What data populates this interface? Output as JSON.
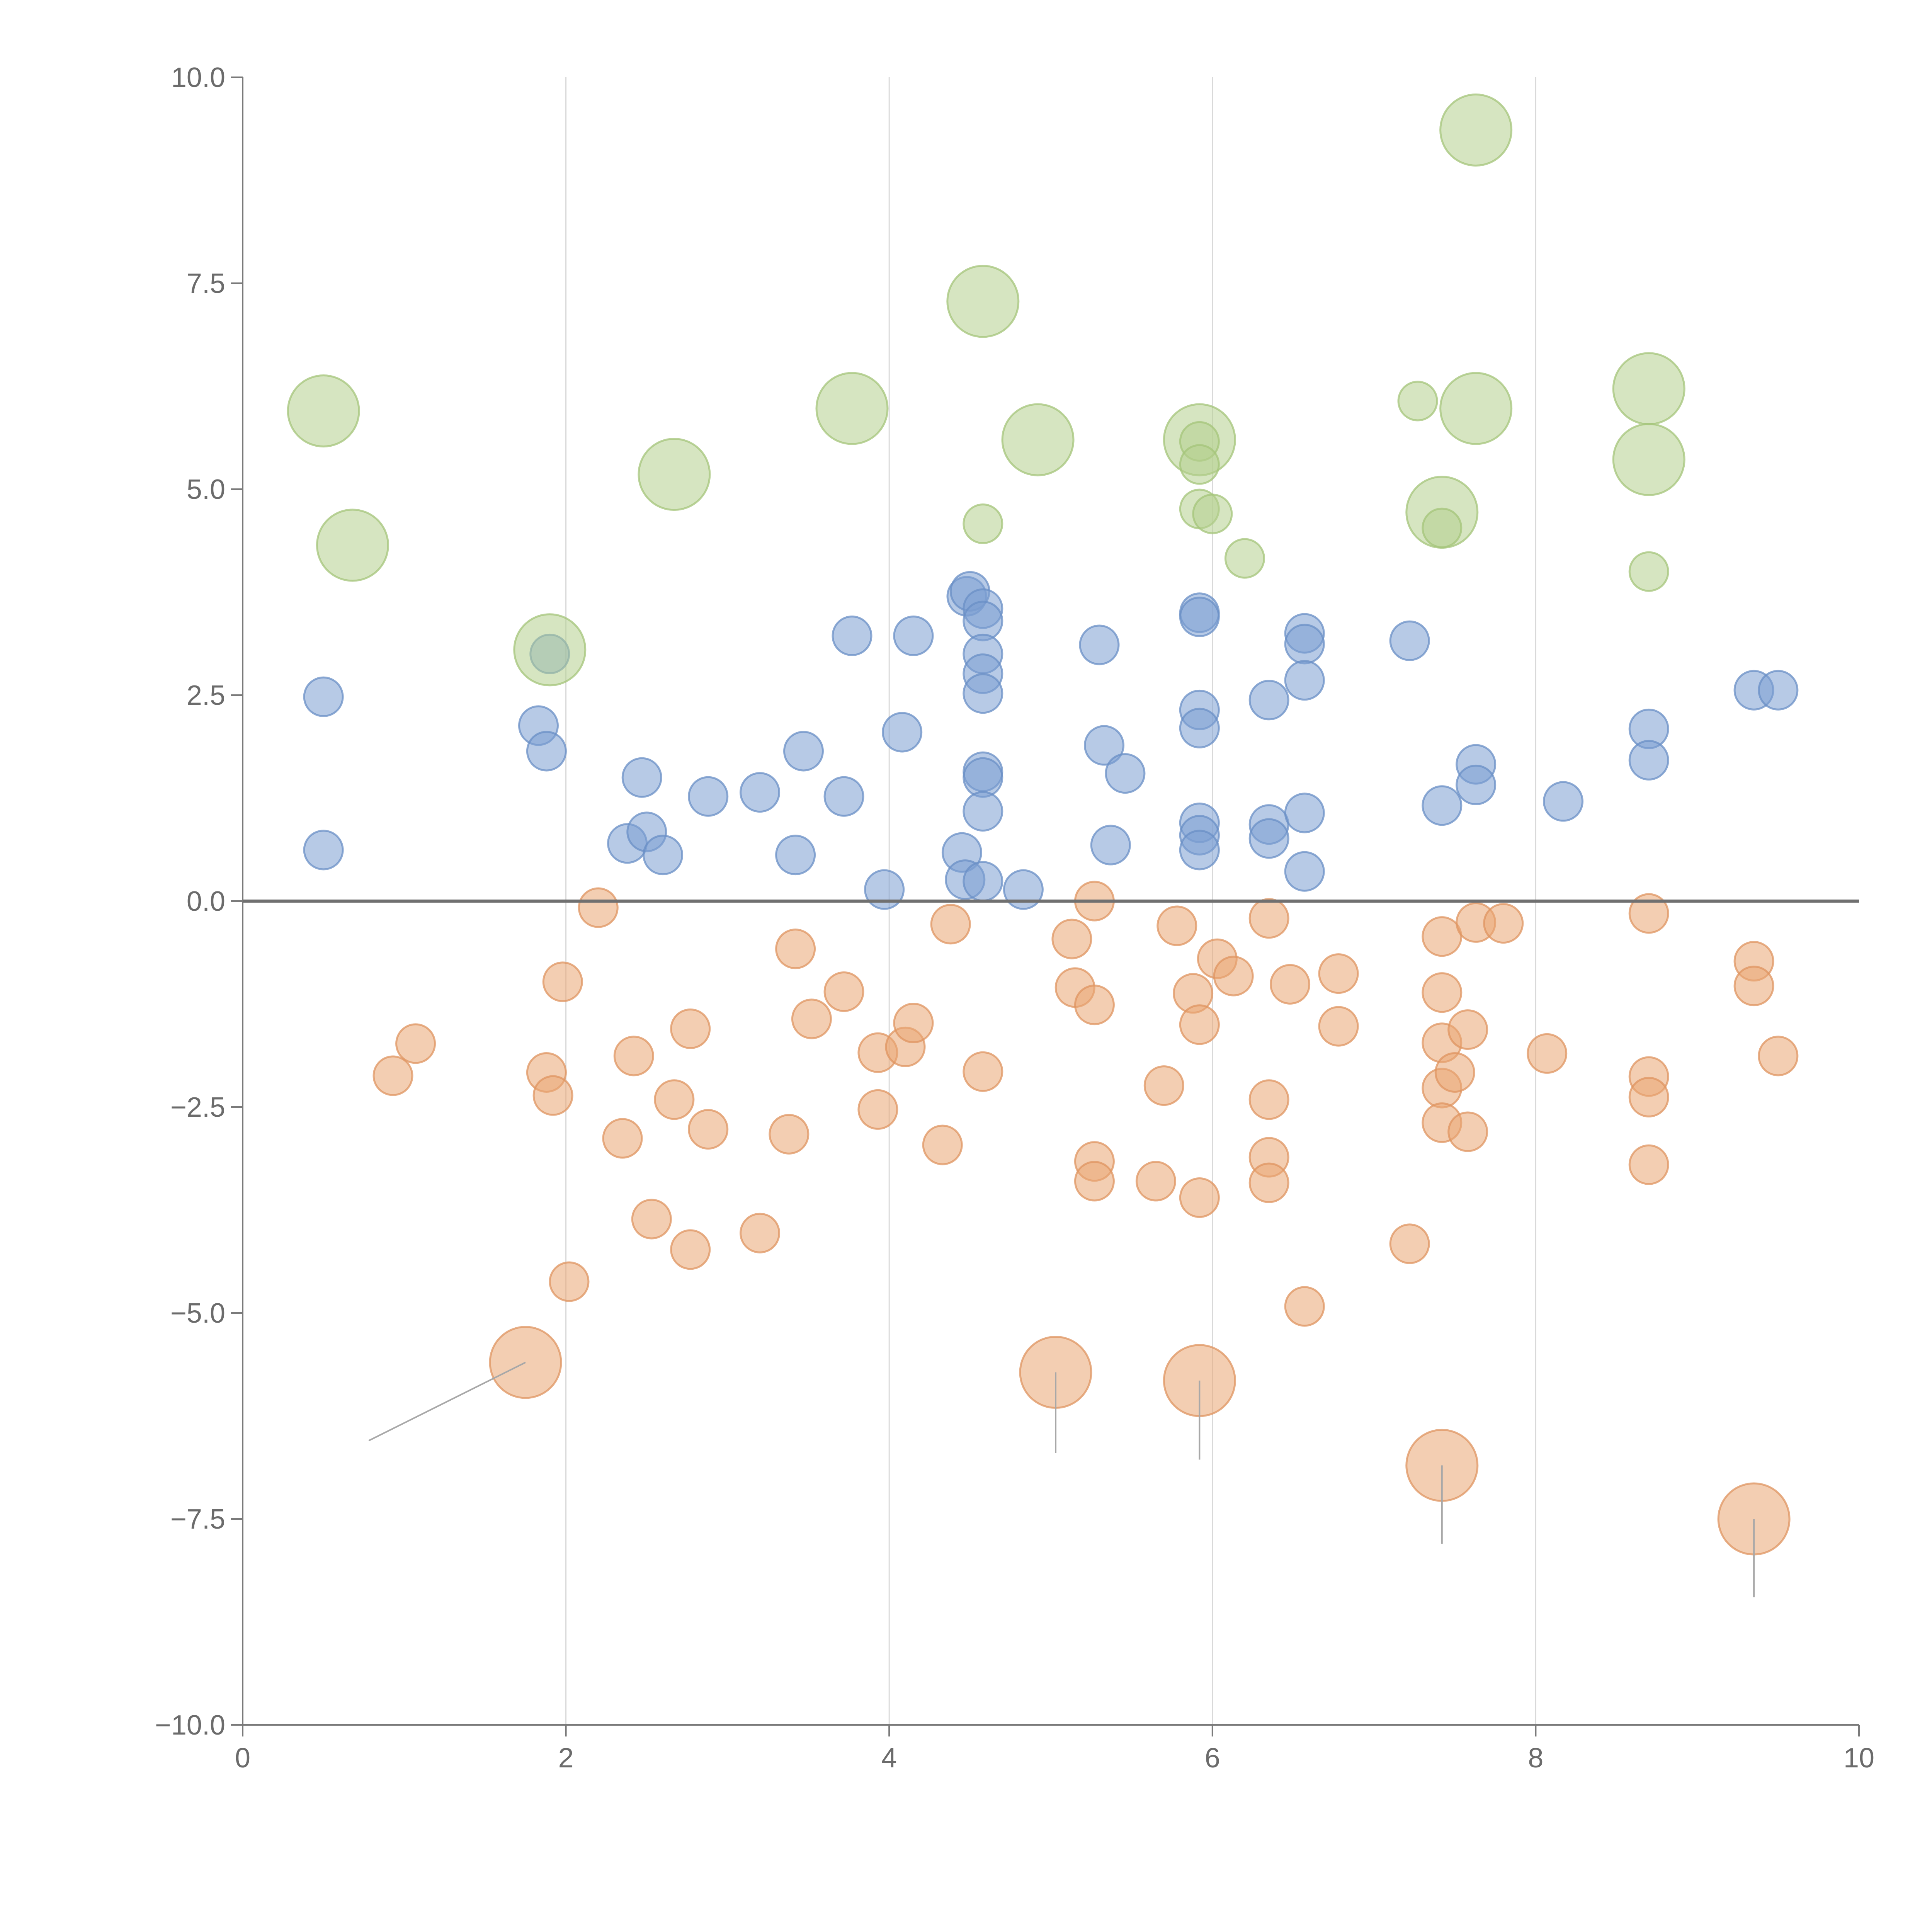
{
  "chart_data": {
    "type": "scatter",
    "subtype": "bubble",
    "title": "",
    "xlabel": "",
    "ylabel": "",
    "xlim": [
      0,
      10
    ],
    "ylim": [
      -10,
      10
    ],
    "x_ticks": [
      0,
      2,
      4,
      6,
      8,
      10
    ],
    "x_tick_labels": [
      "0",
      "2",
      "4",
      "6",
      "8",
      "10"
    ],
    "y_ticks": [
      10,
      7.5,
      5,
      2.5,
      0,
      -2.5,
      -5,
      -7.5,
      -10
    ],
    "y_tick_labels": [
      "10.0",
      "7.5",
      "5.0",
      "2.5",
      "0.0",
      "−2.5",
      "−5.0",
      "−7.5",
      "−10.0"
    ],
    "vertical_grid_at": [
      2,
      4,
      6,
      8
    ],
    "reference_line_y": 0,
    "legend": "none",
    "series": [
      {
        "name": "blue",
        "color": "#7b9fd1",
        "stroke": "#6a8fc5",
        "points": [
          {
            "x": 0.5,
            "y": 2.48,
            "s": 1
          },
          {
            "x": 0.5,
            "y": 0.62,
            "s": 1
          },
          {
            "x": 1.83,
            "y": 2.13,
            "s": 1
          },
          {
            "x": 1.88,
            "y": 1.82,
            "s": 1
          },
          {
            "x": 1.9,
            "y": 3.0,
            "s": 1
          },
          {
            "x": 2.38,
            "y": 0.7,
            "s": 1
          },
          {
            "x": 2.47,
            "y": 1.5,
            "s": 1
          },
          {
            "x": 2.5,
            "y": 0.84,
            "s": 1
          },
          {
            "x": 2.6,
            "y": 0.56,
            "s": 1
          },
          {
            "x": 2.88,
            "y": 1.27,
            "s": 1
          },
          {
            "x": 3.2,
            "y": 1.32,
            "s": 1
          },
          {
            "x": 3.42,
            "y": 0.56,
            "s": 1
          },
          {
            "x": 3.47,
            "y": 1.82,
            "s": 1
          },
          {
            "x": 3.72,
            "y": 1.27,
            "s": 1
          },
          {
            "x": 3.77,
            "y": 3.22,
            "s": 1
          },
          {
            "x": 3.97,
            "y": 0.14,
            "s": 1
          },
          {
            "x": 4.08,
            "y": 2.05,
            "s": 1
          },
          {
            "x": 4.15,
            "y": 3.22,
            "s": 1
          },
          {
            "x": 4.45,
            "y": 0.59,
            "s": 1
          },
          {
            "x": 4.48,
            "y": 3.7,
            "s": 1
          },
          {
            "x": 4.5,
            "y": 3.76,
            "s": 1
          },
          {
            "x": 4.47,
            "y": 0.26,
            "s": 1
          },
          {
            "x": 4.58,
            "y": 3.55,
            "s": 1
          },
          {
            "x": 4.58,
            "y": 3.4,
            "s": 1
          },
          {
            "x": 4.58,
            "y": 3.0,
            "s": 1
          },
          {
            "x": 4.58,
            "y": 2.76,
            "s": 1
          },
          {
            "x": 4.58,
            "y": 2.52,
            "s": 1
          },
          {
            "x": 4.58,
            "y": 1.57,
            "s": 1
          },
          {
            "x": 4.58,
            "y": 1.5,
            "s": 1
          },
          {
            "x": 4.58,
            "y": 1.09,
            "s": 1
          },
          {
            "x": 4.58,
            "y": 0.24,
            "s": 1
          },
          {
            "x": 4.83,
            "y": 0.14,
            "s": 1
          },
          {
            "x": 5.3,
            "y": 3.11,
            "s": 1
          },
          {
            "x": 5.33,
            "y": 1.89,
            "s": 1
          },
          {
            "x": 5.37,
            "y": 0.68,
            "s": 1
          },
          {
            "x": 5.46,
            "y": 1.55,
            "s": 1
          },
          {
            "x": 5.92,
            "y": 3.5,
            "s": 1
          },
          {
            "x": 5.92,
            "y": 3.45,
            "s": 1
          },
          {
            "x": 5.92,
            "y": 2.32,
            "s": 1
          },
          {
            "x": 5.92,
            "y": 2.1,
            "s": 1
          },
          {
            "x": 5.92,
            "y": 0.95,
            "s": 1
          },
          {
            "x": 5.92,
            "y": 0.8,
            "s": 1
          },
          {
            "x": 5.92,
            "y": 0.62,
            "s": 1
          },
          {
            "x": 6.35,
            "y": 2.44,
            "s": 1
          },
          {
            "x": 6.35,
            "y": 0.93,
            "s": 1
          },
          {
            "x": 6.35,
            "y": 0.76,
            "s": 1
          },
          {
            "x": 6.57,
            "y": 3.25,
            "s": 1
          },
          {
            "x": 6.57,
            "y": 3.12,
            "s": 1
          },
          {
            "x": 6.57,
            "y": 2.68,
            "s": 1
          },
          {
            "x": 6.57,
            "y": 1.07,
            "s": 1
          },
          {
            "x": 6.57,
            "y": 0.36,
            "s": 1
          },
          {
            "x": 7.22,
            "y": 3.16,
            "s": 1
          },
          {
            "x": 7.42,
            "y": 1.16,
            "s": 1
          },
          {
            "x": 7.63,
            "y": 1.66,
            "s": 1
          },
          {
            "x": 7.63,
            "y": 1.41,
            "s": 1
          },
          {
            "x": 8.17,
            "y": 1.21,
            "s": 1
          },
          {
            "x": 8.7,
            "y": 2.09,
            "s": 1
          },
          {
            "x": 8.7,
            "y": 1.71,
            "s": 1
          },
          {
            "x": 9.35,
            "y": 2.56,
            "s": 1
          },
          {
            "x": 9.5,
            "y": 2.56,
            "s": 1
          }
        ]
      },
      {
        "name": "orange",
        "color": "#e9a572",
        "stroke": "#df9460",
        "points": [
          {
            "x": 0.93,
            "y": -2.12,
            "s": 1
          },
          {
            "x": 1.07,
            "y": -1.73,
            "s": 1
          },
          {
            "x": 1.88,
            "y": -2.08,
            "s": 1
          },
          {
            "x": 1.92,
            "y": -2.36,
            "s": 1
          },
          {
            "x": 1.98,
            "y": -0.98,
            "s": 1
          },
          {
            "x": 2.02,
            "y": -4.62,
            "s": 1
          },
          {
            "x": 2.2,
            "y": -0.08,
            "s": 1
          },
          {
            "x": 2.35,
            "y": -2.88,
            "s": 1
          },
          {
            "x": 2.42,
            "y": -1.88,
            "s": 1
          },
          {
            "x": 2.53,
            "y": -3.86,
            "s": 1
          },
          {
            "x": 2.67,
            "y": -2.41,
            "s": 1
          },
          {
            "x": 2.77,
            "y": -1.55,
            "s": 1
          },
          {
            "x": 2.77,
            "y": -4.23,
            "s": 1
          },
          {
            "x": 2.88,
            "y": -2.77,
            "s": 1
          },
          {
            "x": 3.2,
            "y": -4.03,
            "s": 1
          },
          {
            "x": 3.38,
            "y": -2.83,
            "s": 1
          },
          {
            "x": 3.42,
            "y": -0.58,
            "s": 1
          },
          {
            "x": 3.52,
            "y": -1.43,
            "s": 1
          },
          {
            "x": 3.72,
            "y": -1.1,
            "s": 1
          },
          {
            "x": 3.93,
            "y": -2.53,
            "s": 1
          },
          {
            "x": 3.93,
            "y": -1.84,
            "s": 1
          },
          {
            "x": 4.1,
            "y": -1.77,
            "s": 1
          },
          {
            "x": 4.15,
            "y": -1.48,
            "s": 1
          },
          {
            "x": 4.33,
            "y": -2.96,
            "s": 1
          },
          {
            "x": 4.38,
            "y": -0.28,
            "s": 1
          },
          {
            "x": 4.58,
            "y": -2.07,
            "s": 1
          },
          {
            "x": 5.13,
            "y": -0.46,
            "s": 1
          },
          {
            "x": 5.15,
            "y": -1.05,
            "s": 1
          },
          {
            "x": 5.27,
            "y": 0.0,
            "s": 1
          },
          {
            "x": 5.27,
            "y": -1.26,
            "s": 1
          },
          {
            "x": 5.27,
            "y": -3.16,
            "s": 1
          },
          {
            "x": 5.27,
            "y": -3.4,
            "s": 1
          },
          {
            "x": 5.65,
            "y": -3.4,
            "s": 1
          },
          {
            "x": 5.7,
            "y": -2.24,
            "s": 1
          },
          {
            "x": 5.78,
            "y": -0.3,
            "s": 1
          },
          {
            "x": 5.88,
            "y": -1.12,
            "s": 1
          },
          {
            "x": 5.92,
            "y": -1.5,
            "s": 1
          },
          {
            "x": 5.92,
            "y": -3.6,
            "s": 1
          },
          {
            "x": 6.03,
            "y": -0.7,
            "s": 1
          },
          {
            "x": 6.13,
            "y": -0.91,
            "s": 1
          },
          {
            "x": 6.35,
            "y": -0.21,
            "s": 1
          },
          {
            "x": 6.35,
            "y": -2.41,
            "s": 1
          },
          {
            "x": 6.35,
            "y": -3.11,
            "s": 1
          },
          {
            "x": 6.35,
            "y": -3.42,
            "s": 1
          },
          {
            "x": 6.48,
            "y": -1.01,
            "s": 1
          },
          {
            "x": 6.57,
            "y": -4.92,
            "s": 1
          },
          {
            "x": 6.78,
            "y": -0.88,
            "s": 1
          },
          {
            "x": 6.78,
            "y": -1.52,
            "s": 1
          },
          {
            "x": 7.22,
            "y": -4.16,
            "s": 1
          },
          {
            "x": 7.42,
            "y": -0.43,
            "s": 1
          },
          {
            "x": 7.42,
            "y": -1.11,
            "s": 1
          },
          {
            "x": 7.42,
            "y": -1.72,
            "s": 1
          },
          {
            "x": 7.42,
            "y": -2.27,
            "s": 1
          },
          {
            "x": 7.42,
            "y": -2.69,
            "s": 1
          },
          {
            "x": 7.5,
            "y": -2.08,
            "s": 1
          },
          {
            "x": 7.58,
            "y": -1.56,
            "s": 1
          },
          {
            "x": 7.58,
            "y": -2.8,
            "s": 1
          },
          {
            "x": 7.63,
            "y": -0.26,
            "s": 1
          },
          {
            "x": 7.8,
            "y": -0.27,
            "s": 1
          },
          {
            "x": 8.07,
            "y": -1.85,
            "s": 1
          },
          {
            "x": 8.7,
            "y": -0.15,
            "s": 1
          },
          {
            "x": 8.7,
            "y": -2.13,
            "s": 1
          },
          {
            "x": 8.7,
            "y": -2.38,
            "s": 1
          },
          {
            "x": 8.7,
            "y": -3.2,
            "s": 1
          },
          {
            "x": 9.35,
            "y": -0.73,
            "s": 1
          },
          {
            "x": 9.35,
            "y": -1.03,
            "s": 1
          },
          {
            "x": 9.5,
            "y": -1.88,
            "s": 1
          },
          {
            "x": 1.75,
            "y": -5.6,
            "s": 2,
            "leader_to": [
              0.78,
              -6.55
            ]
          },
          {
            "x": 5.03,
            "y": -5.72,
            "s": 2,
            "leader_to": [
              5.03,
              -6.7
            ]
          },
          {
            "x": 5.92,
            "y": -5.82,
            "s": 2,
            "leader_to": [
              5.92,
              -6.78
            ]
          },
          {
            "x": 7.42,
            "y": -6.85,
            "s": 2,
            "leader_to": [
              7.42,
              -7.8
            ]
          },
          {
            "x": 9.35,
            "y": -7.5,
            "s": 2,
            "leader_to": [
              9.35,
              -8.45
            ]
          }
        ]
      },
      {
        "name": "green",
        "color": "#b5d08e",
        "stroke": "#a4c47a",
        "points": [
          {
            "x": 0.5,
            "y": 5.95,
            "s": 2
          },
          {
            "x": 0.68,
            "y": 4.32,
            "s": 2
          },
          {
            "x": 1.9,
            "y": 3.05,
            "s": 2
          },
          {
            "x": 2.67,
            "y": 5.18,
            "s": 2
          },
          {
            "x": 3.77,
            "y": 5.98,
            "s": 2
          },
          {
            "x": 4.58,
            "y": 7.28,
            "s": 2
          },
          {
            "x": 4.92,
            "y": 5.6,
            "s": 2
          },
          {
            "x": 5.92,
            "y": 5.6,
            "s": 2
          },
          {
            "x": 7.42,
            "y": 4.72,
            "s": 2
          },
          {
            "x": 7.63,
            "y": 9.36,
            "s": 2
          },
          {
            "x": 7.63,
            "y": 5.98,
            "s": 2
          },
          {
            "x": 8.7,
            "y": 6.22,
            "s": 2
          },
          {
            "x": 8.7,
            "y": 5.36,
            "s": 2
          },
          {
            "x": 4.58,
            "y": 4.58,
            "s": 1
          },
          {
            "x": 5.92,
            "y": 5.58,
            "s": 1
          },
          {
            "x": 5.92,
            "y": 5.3,
            "s": 1
          },
          {
            "x": 5.92,
            "y": 4.76,
            "s": 1
          },
          {
            "x": 6.0,
            "y": 4.7,
            "s": 1
          },
          {
            "x": 6.2,
            "y": 4.16,
            "s": 1
          },
          {
            "x": 7.27,
            "y": 6.07,
            "s": 1
          },
          {
            "x": 7.42,
            "y": 4.53,
            "s": 1
          },
          {
            "x": 8.7,
            "y": 4.0,
            "s": 1
          }
        ]
      }
    ]
  }
}
